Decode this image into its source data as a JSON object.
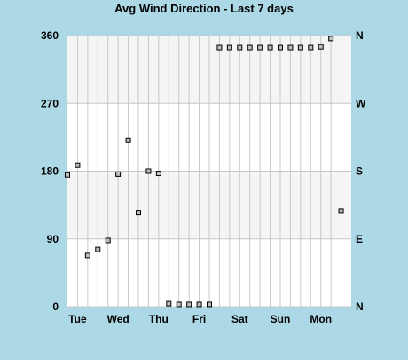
{
  "chart_data": {
    "type": "scatter",
    "title": "Avg Wind Direction - Last 7 days",
    "xlabel": "",
    "ylabel": "",
    "ylim": [
      0,
      360
    ],
    "grid": true,
    "legend": "none",
    "y_ticks": [
      {
        "value": 0,
        "label": "0"
      },
      {
        "value": 90,
        "label": "90"
      },
      {
        "value": 180,
        "label": "180"
      },
      {
        "value": 270,
        "label": "270"
      },
      {
        "value": 360,
        "label": "360"
      }
    ],
    "y2_ticks": [
      {
        "value": 0,
        "label": "N"
      },
      {
        "value": 90,
        "label": "E"
      },
      {
        "value": 180,
        "label": "S"
      },
      {
        "value": 270,
        "label": "W"
      },
      {
        "value": 360,
        "label": "N"
      }
    ],
    "x_slots": 28,
    "x_labels": [
      {
        "slot": 1,
        "label": "Tue"
      },
      {
        "slot": 5,
        "label": "Wed"
      },
      {
        "slot": 9,
        "label": "Thu"
      },
      {
        "slot": 13,
        "label": "Fri"
      },
      {
        "slot": 17,
        "label": "Sat"
      },
      {
        "slot": 21,
        "label": "Sun"
      },
      {
        "slot": 25,
        "label": "Mon"
      }
    ],
    "points": [
      {
        "x": 0,
        "y": 175
      },
      {
        "x": 1,
        "y": 188
      },
      {
        "x": 2,
        "y": 68
      },
      {
        "x": 3,
        "y": 76
      },
      {
        "x": 4,
        "y": 88
      },
      {
        "x": 5,
        "y": 176
      },
      {
        "x": 6,
        "y": 221
      },
      {
        "x": 7,
        "y": 125
      },
      {
        "x": 8,
        "y": 180
      },
      {
        "x": 9,
        "y": 177
      },
      {
        "x": 10,
        "y": 4
      },
      {
        "x": 11,
        "y": 3
      },
      {
        "x": 12,
        "y": 3
      },
      {
        "x": 13,
        "y": 3
      },
      {
        "x": 14,
        "y": 3
      },
      {
        "x": 15,
        "y": 344
      },
      {
        "x": 16,
        "y": 344
      },
      {
        "x": 17,
        "y": 344
      },
      {
        "x": 18,
        "y": 344
      },
      {
        "x": 19,
        "y": 344
      },
      {
        "x": 20,
        "y": 344
      },
      {
        "x": 21,
        "y": 344
      },
      {
        "x": 22,
        "y": 344
      },
      {
        "x": 23,
        "y": 344
      },
      {
        "x": 24,
        "y": 344
      },
      {
        "x": 25,
        "y": 345
      },
      {
        "x": 26,
        "y": 356
      },
      {
        "x": 27,
        "y": 127
      }
    ],
    "colors": {
      "background": "#add8e6",
      "plot_background": "#ffffff",
      "band_fill": "#f5f5f5",
      "grid_line": "#c8c8c8",
      "marker_fill": "#bebebe",
      "marker_stroke": "#000000"
    }
  }
}
